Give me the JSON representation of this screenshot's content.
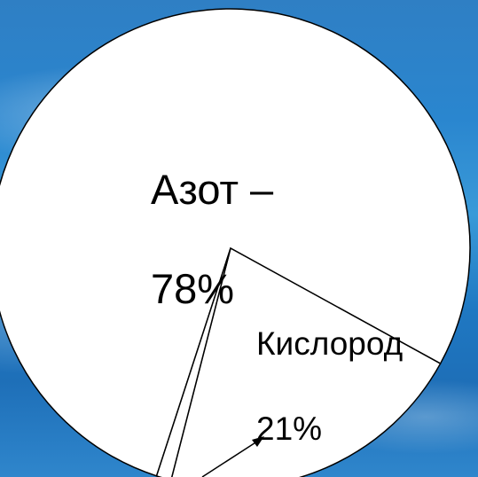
{
  "chart_data": {
    "type": "pie",
    "slices": [
      {
        "label": "Азот –",
        "value_text": "78%",
        "value": 78,
        "color": "#ffffff"
      },
      {
        "label": "Кислород",
        "value_text": "21%",
        "value": 21,
        "color": "#ffffff"
      },
      {
        "label": "",
        "value_text": "",
        "value": 1,
        "color": "#ffffff"
      }
    ],
    "title": "",
    "legend": "none",
    "annotation": "arrow pointing to the 1% slice"
  },
  "colors": {
    "background": "#2a86cf",
    "slice_fill": "#ffffff",
    "outline": "#000000"
  }
}
